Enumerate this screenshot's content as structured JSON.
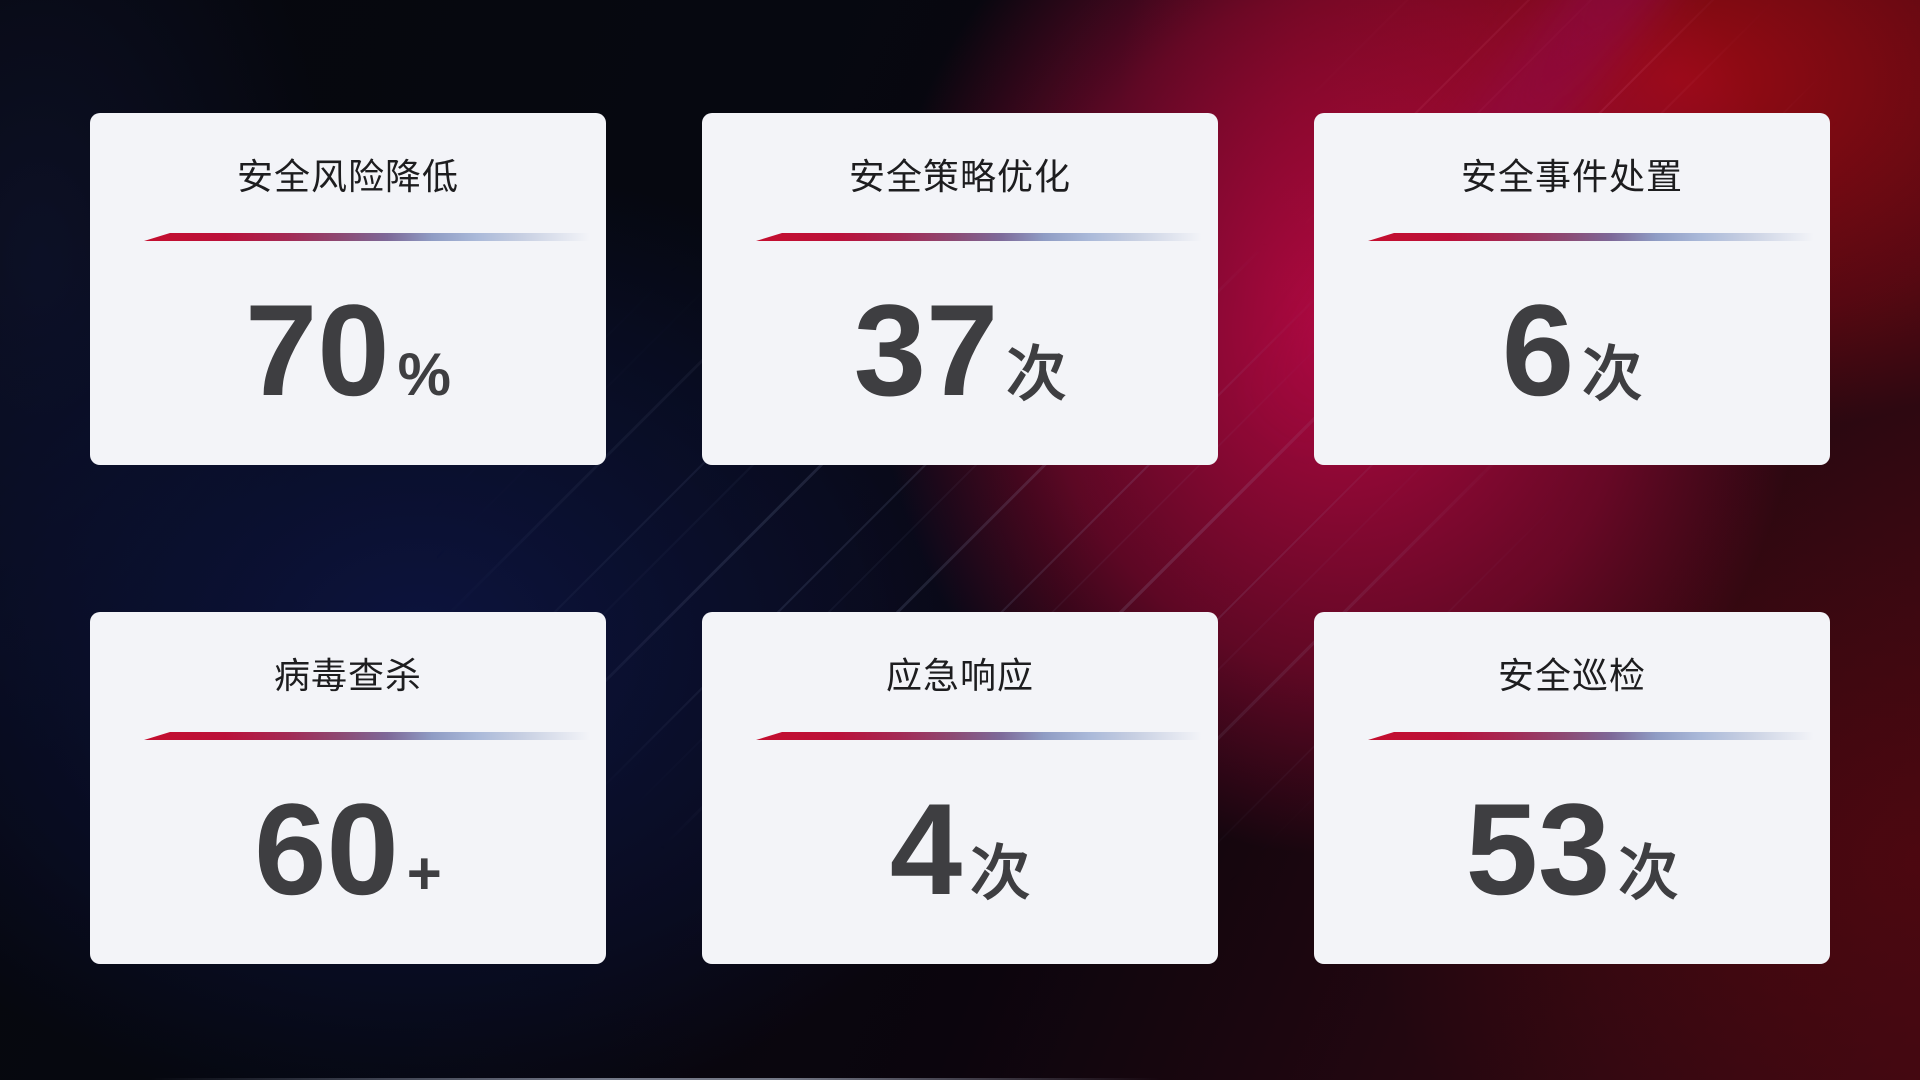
{
  "colors": {
    "background_base": "#06070d",
    "background_blue_glow": "#0d1440",
    "background_red_glow": "#ba0944",
    "background_top_right_red": "#a80b14",
    "card_bg": "#f3f4f8",
    "title_color": "#1d1d1f",
    "value_color": "#3e3e41",
    "divider_start": "#c40e2e",
    "divider_mid": "#7d6898",
    "divider_end": "#aab9d9"
  },
  "cards": [
    {
      "title": "安全风险降低",
      "value": "70",
      "unit": "%"
    },
    {
      "title": "安全策略优化",
      "value": "37",
      "unit": "次"
    },
    {
      "title": "安全事件处置",
      "value": "6",
      "unit": "次"
    },
    {
      "title": "病毒查杀",
      "value": "60",
      "unit": "+"
    },
    {
      "title": "应急响应",
      "value": "4",
      "unit": "次"
    },
    {
      "title": "安全巡检",
      "value": "53",
      "unit": "次"
    }
  ]
}
